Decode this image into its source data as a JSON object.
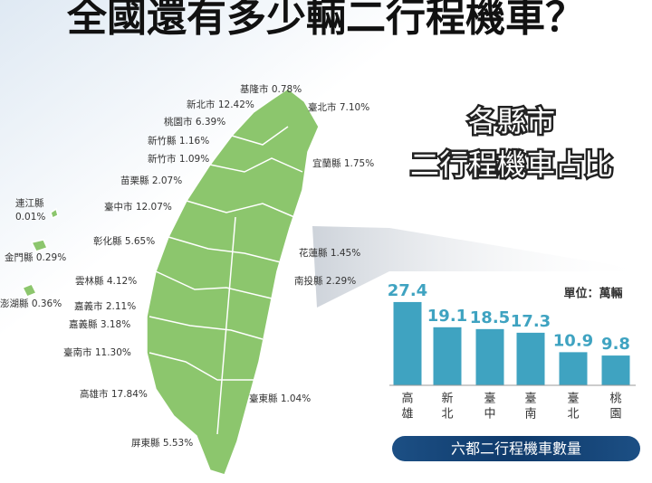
{
  "title": "全國還有多少輛二行程機車？",
  "map_heading": [
    "各縣市",
    "二行程機車占比"
  ],
  "map_labels": [
    {
      "lines": [
        "基隆市 0.78%"
      ]
    },
    {
      "lines": [
        "新北市 12.42%"
      ]
    },
    {
      "lines": [
        "臺北市 7.10%"
      ]
    },
    {
      "lines": [
        "桃園市 6.39%"
      ]
    },
    {
      "lines": [
        "新竹縣 1.16%"
      ]
    },
    {
      "lines": [
        "新竹市 1.09%"
      ]
    },
    {
      "lines": [
        "宜蘭縣 1.75%"
      ]
    },
    {
      "lines": [
        "苗栗縣 2.07%"
      ]
    },
    {
      "lines": [
        "連江縣",
        "0.01%"
      ]
    },
    {
      "lines": [
        "臺中市 12.07%"
      ]
    },
    {
      "lines": [
        "彰化縣 5.65%"
      ]
    },
    {
      "lines": [
        "花蓮縣 1.45%"
      ]
    },
    {
      "lines": [
        "金門縣 0.29%"
      ]
    },
    {
      "lines": [
        "南投縣 2.29%"
      ]
    },
    {
      "lines": [
        "雲林縣 4.12%"
      ]
    },
    {
      "lines": [
        "澎湖縣 0.36%"
      ]
    },
    {
      "lines": [
        "嘉義市 2.11%"
      ]
    },
    {
      "lines": [
        "嘉義縣 3.18%"
      ]
    },
    {
      "lines": [
        "臺南市 11.30%"
      ]
    },
    {
      "lines": [
        "高雄市 17.84%"
      ]
    },
    {
      "lines": [
        "臺東縣 1.04%"
      ]
    },
    {
      "lines": [
        "屏東縣 5.53%"
      ]
    }
  ],
  "chart_data": {
    "type": "bar",
    "title": "六都二行程機車數量",
    "unit": "單位：萬輛",
    "categories": [
      [
        "高",
        "雄"
      ],
      [
        "新",
        "北"
      ],
      [
        "臺",
        "中"
      ],
      [
        "臺",
        "南"
      ],
      [
        "臺",
        "北"
      ],
      [
        "桃",
        "園"
      ]
    ],
    "values": [
      27.4,
      19.1,
      18.5,
      17.3,
      10.9,
      9.8
    ],
    "color": "#3fa3c1"
  }
}
